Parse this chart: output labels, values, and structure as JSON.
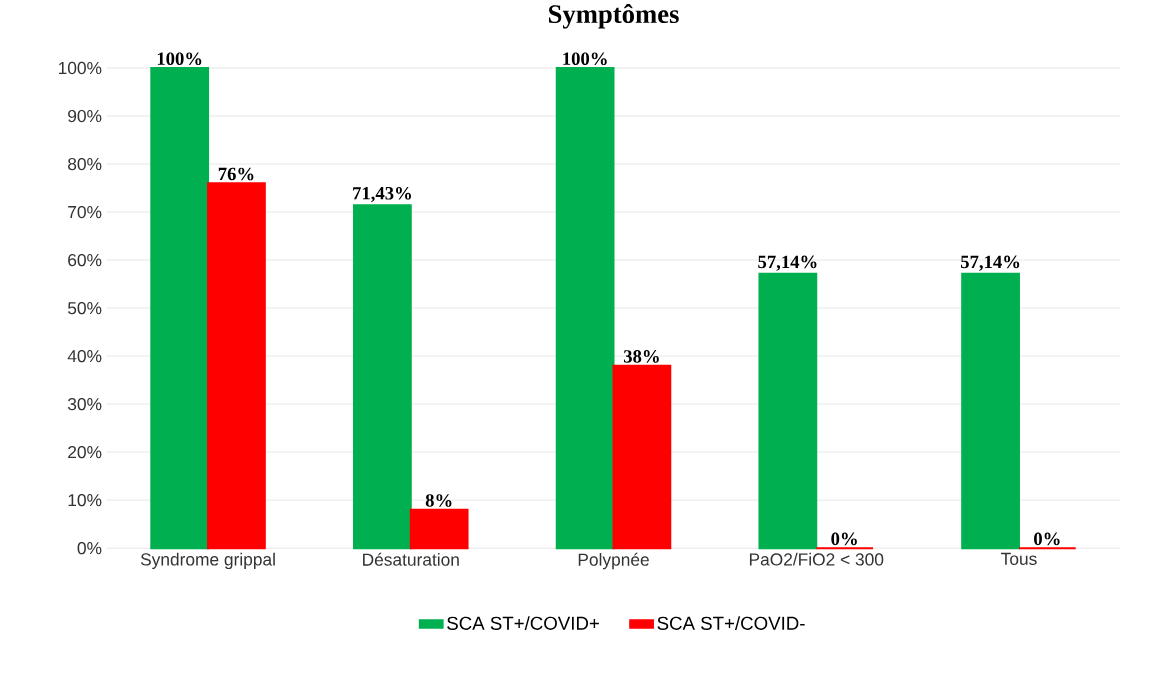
{
  "chart_data": {
    "type": "bar",
    "title": "Symptômes",
    "categories": [
      "Syndrome grippal",
      "Désaturation",
      "Polypnée",
      "PaO2/FiO2 < 300",
      "Tous"
    ],
    "series": [
      {
        "name": "SCA ST+/COVID+",
        "color": "#00b050",
        "values": [
          100,
          71.43,
          100,
          57.14,
          57.14
        ],
        "value_labels": [
          "100%",
          "71,43%",
          "100%",
          "57,14%",
          "57,14%"
        ]
      },
      {
        "name": "SCA ST+/COVID-",
        "color": "#ff0000",
        "values": [
          76,
          8,
          38,
          0,
          0
        ],
        "value_labels": [
          "76%",
          "8%",
          "38%",
          "0%",
          "0%"
        ]
      }
    ],
    "ylim": [
      0,
      100
    ],
    "yticks": [
      {
        "value": 0,
        "label": "0%"
      },
      {
        "value": 10,
        "label": "10%"
      },
      {
        "value": 20,
        "label": "20%"
      },
      {
        "value": 30,
        "label": "30%"
      },
      {
        "value": 40,
        "label": "40%"
      },
      {
        "value": 50,
        "label": "50%"
      },
      {
        "value": 60,
        "label": "60%"
      },
      {
        "value": 70,
        "label": "70%"
      },
      {
        "value": 80,
        "label": "80%"
      },
      {
        "value": 90,
        "label": "90%"
      },
      {
        "value": 100,
        "label": "100%"
      }
    ],
    "grid": "y",
    "legend": "bottom"
  }
}
